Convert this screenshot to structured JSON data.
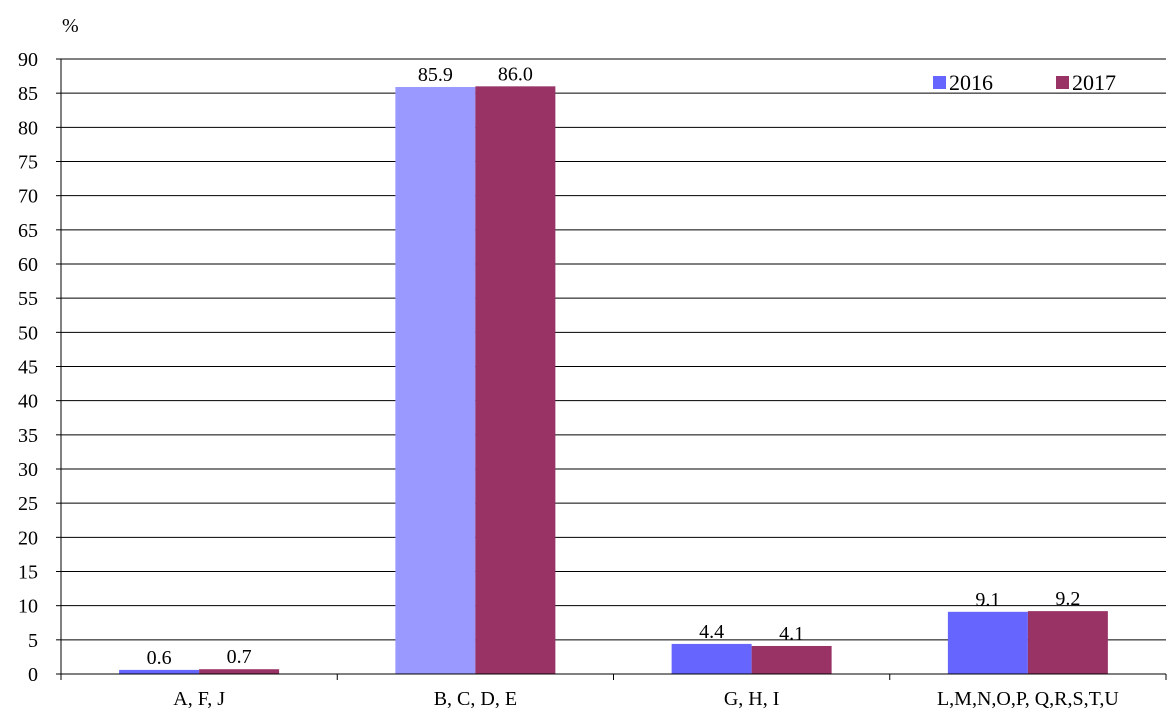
{
  "chart_data": {
    "type": "bar",
    "ylabel": "%",
    "ylim": [
      0,
      90
    ],
    "ytick_step": 5,
    "grid": true,
    "legend_position": "top-right",
    "categories": [
      "A, F, J",
      "B, C, D, E",
      "G, H, I",
      "L,M,N,O,P, Q,R,S,T,U"
    ],
    "series": [
      {
        "name": "2016",
        "values": [
          0.6,
          85.9,
          4.4,
          9.1
        ],
        "labels": [
          "0.6",
          "85.9",
          "4.4",
          "9.1"
        ],
        "colors": [
          "#6666ff",
          "#9999ff",
          "#6666ff",
          "#6666ff"
        ]
      },
      {
        "name": "2017",
        "values": [
          0.7,
          86.0,
          4.1,
          9.2
        ],
        "labels": [
          "0.7",
          "86.0",
          "4.1",
          "9.2"
        ],
        "colors": [
          "#993366",
          "#993366",
          "#993366",
          "#993366"
        ]
      }
    ],
    "legend_colors": [
      "#6666ff",
      "#993366"
    ]
  }
}
